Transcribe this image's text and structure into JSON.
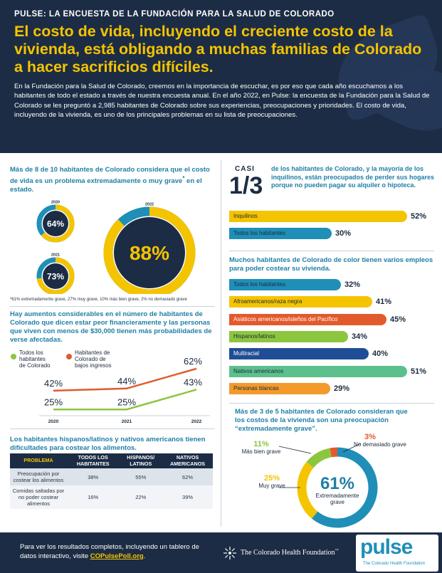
{
  "header": {
    "kicker_bold": "PULSE:",
    "kicker_rest": " LA ENCUESTA DE LA FUNDACIÓN PARA LA SALUD DE COLORADO",
    "headline": "El costo de vida, incluyendo el creciente costo de la vivienda, está obligando a muchas familias de Colorado a hacer sacrificios difíciles.",
    "intro": "En la Fundación para la Salud de Colorado, creemos en la importancia de escuchar, es por eso que cada año escuchamos a los habitantes de todo el estado a través de nuestra encuesta anual. En el año 2022, en Pulse: la encuesta de la Fundación para la Salud de Colorado se les preguntó a 2,985 habitantes de Colorado sobre sus experiencias, preocupaciones y prioridades. El costo de vida, incluyendo de la vivienda, es uno de los principales problemas en su lista de preocupaciones."
  },
  "cost_of_living": {
    "title_a": "Más de 8 de 10 habitantes de Colorado considera que el costo de vida es un problema extremadamente o muy grave",
    "title_sup": "*",
    "title_b": " en el estado.",
    "donuts": [
      {
        "year": "2020",
        "value": 64,
        "label": "64%"
      },
      {
        "year": "2021",
        "value": 73,
        "label": "73%"
      },
      {
        "year": "2022",
        "value": 88,
        "label": "88%"
      }
    ],
    "footnote": "*61% extremadamente grave, 27% muy grave, 10% más bien grave, 2% no demasiado grave",
    "colors": {
      "yellow": "#f5c400",
      "teal": "#1f8fb8",
      "navy": "#1c2c44"
    }
  },
  "housing": {
    "big_small": "CASI",
    "big": "1/3",
    "text": "de los habitantes de Colorado, y la mayoría de los inquilinos, están preocupados de perder sus hogares porque no pueden pagar su alquiler o hipoteca.",
    "bars": [
      {
        "label": "Inquilinos",
        "value": 52,
        "pct": "52%",
        "color": "#f5c400"
      },
      {
        "label": "Todos los habitantes",
        "value": 30,
        "pct": "30%",
        "color": "#1f8fb8"
      }
    ]
  },
  "jobs": {
    "title": "Muchos habitantes de Colorado de color tienen varios empleos para poder costear su vivienda.",
    "bars": [
      {
        "label": "Todos los habitantes",
        "value": 32,
        "pct": "32%",
        "color": "#1f8fb8",
        "text": "#1b2a3d"
      },
      {
        "label": "Afroamericanos/raza negra",
        "value": 41,
        "pct": "41%",
        "color": "#f5c400",
        "text": "#1b2a3d"
      },
      {
        "label": "Asiáticos americanos/isleños del Pacífico",
        "value": 45,
        "pct": "45%",
        "color": "#e25a2c",
        "text": "#ffffff"
      },
      {
        "label": "Hispanos/latinos",
        "value": 34,
        "pct": "34%",
        "color": "#8cc63f",
        "text": "#1b2a3d"
      },
      {
        "label": "Multiracial",
        "value": 40,
        "pct": "40%",
        "color": "#1f4e96",
        "text": "#ffffff"
      },
      {
        "label": "Nativos americanos",
        "value": 51,
        "pct": "51%",
        "color": "#5cc08c",
        "text": "#1b2a3d"
      },
      {
        "label": "Personas blancas",
        "value": 29,
        "pct": "29%",
        "color": "#f39a2b",
        "text": "#1b2a3d"
      }
    ]
  },
  "income": {
    "title": "Hay aumentos considerables en el número de habitantes de Colorado que dicen estar peor financieramente y las personas que viven con menos de $30,000 tienen más probabilidades de verse afectadas.",
    "legend_all": "Todos los habitantes de Colorado",
    "legend_low": "Habitantes de Colorado de bajos ingresos",
    "years": [
      "2020",
      "2021",
      "2022"
    ],
    "all": [
      25,
      25,
      43
    ],
    "low": [
      42,
      44,
      62
    ],
    "all_labels": [
      "25%",
      "25%",
      "43%"
    ],
    "low_labels": [
      "42%",
      "44%",
      "62%"
    ],
    "colors": {
      "all": "#8cc63f",
      "low": "#e25a2c"
    }
  },
  "food": {
    "title": "Los habitantes hispanos/latinos y nativos americanos tienen dificultades para costear los alimentos.",
    "headers": [
      "PROBLEMA",
      "TODOS LOS HABITANTES",
      "HISPANOS/ LATINOS",
      "NATIVOS AMERICANOS"
    ],
    "rows": [
      [
        "Preocupación por costear los alimentos",
        "38%",
        "55%",
        "62%"
      ],
      [
        "Comidas saltadas por no poder costear alimentos",
        "16%",
        "22%",
        "39%"
      ]
    ]
  },
  "severity": {
    "title": "Más de 3 de 5 habitantes de Colorado consideran que los costos de la vivienda son una preocupación “extremadamente grave”.",
    "segments": [
      {
        "label": "Extremadamente grave",
        "value": 61,
        "pct": "61%",
        "color": "#1f8fb8"
      },
      {
        "label": "Muy grave",
        "value": 25,
        "pct": "25%",
        "color": "#f5c400"
      },
      {
        "label": "Más bien grave",
        "value": 11,
        "pct": "11%",
        "color": "#8cc63f"
      },
      {
        "label": "No demasiado grave",
        "value": 3,
        "pct": "3%",
        "color": "#e25a2c"
      }
    ]
  },
  "footer": {
    "text": "Para ver los resultados completos, incluyendo un tablero de datos interactivo, visite ",
    "link": "COPulsePoll.org",
    "period": ".",
    "foundation": "The Colorado Health Foundation",
    "tm": "™",
    "logo": "pulse",
    "logo_sub": "The Colorado Health Foundation"
  }
}
